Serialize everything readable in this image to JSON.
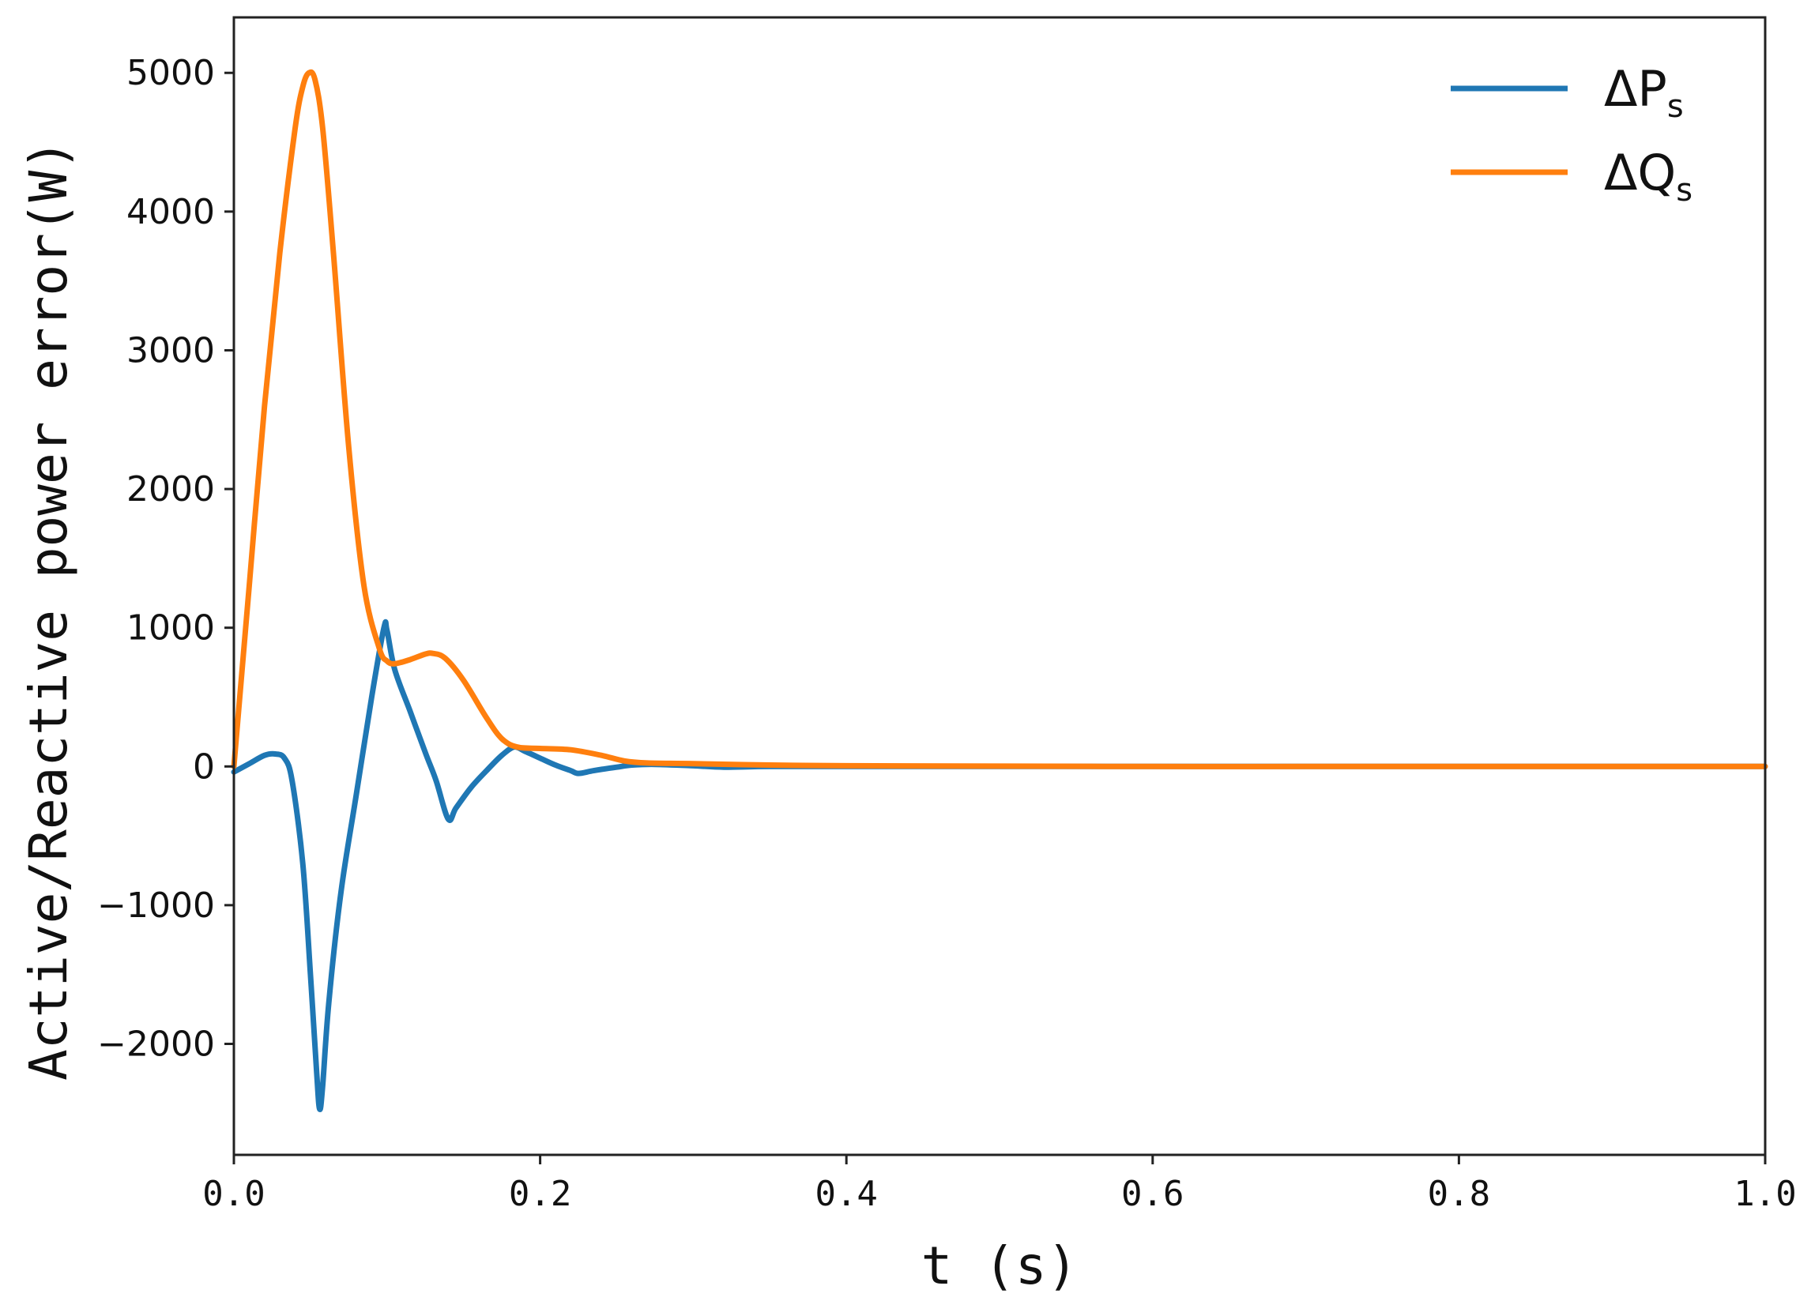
{
  "chart_data": {
    "type": "line",
    "xlabel": "t (s)",
    "ylabel": "Active/Reactive power error(W)",
    "xlim": [
      0.0,
      1.0
    ],
    "ylim": [
      -2800,
      5400
    ],
    "xticks": [
      "0.0",
      "0.2",
      "0.4",
      "0.6",
      "0.8",
      "1.0"
    ],
    "yticks": [
      "5000",
      "4000",
      "3000",
      "2000",
      "1000",
      "0",
      "−1000",
      "−2000"
    ],
    "xtick_values": [
      0.0,
      0.2,
      0.4,
      0.6,
      0.8,
      1.0
    ],
    "ytick_values": [
      5000,
      4000,
      3000,
      2000,
      1000,
      0,
      -1000,
      -2000
    ],
    "grid": false,
    "legend_position": "top-right",
    "series": [
      {
        "name": "ΔP",
        "subscript": "s",
        "color": "#1f77b4",
        "points": [
          [
            0.0,
            -40
          ],
          [
            0.01,
            20
          ],
          [
            0.02,
            80
          ],
          [
            0.027,
            90
          ],
          [
            0.033,
            60
          ],
          [
            0.038,
            -100
          ],
          [
            0.045,
            -700
          ],
          [
            0.05,
            -1500
          ],
          [
            0.054,
            -2200
          ],
          [
            0.056,
            -2470
          ],
          [
            0.058,
            -2300
          ],
          [
            0.062,
            -1700
          ],
          [
            0.07,
            -900
          ],
          [
            0.08,
            -200
          ],
          [
            0.09,
            500
          ],
          [
            0.098,
            1000
          ],
          [
            0.1,
            980
          ],
          [
            0.105,
            700
          ],
          [
            0.115,
            400
          ],
          [
            0.125,
            100
          ],
          [
            0.132,
            -100
          ],
          [
            0.14,
            -380
          ],
          [
            0.145,
            -300
          ],
          [
            0.155,
            -150
          ],
          [
            0.165,
            -30
          ],
          [
            0.175,
            80
          ],
          [
            0.183,
            140
          ],
          [
            0.19,
            110
          ],
          [
            0.2,
            60
          ],
          [
            0.21,
            10
          ],
          [
            0.22,
            -30
          ],
          [
            0.225,
            -50
          ],
          [
            0.235,
            -30
          ],
          [
            0.25,
            -5
          ],
          [
            0.26,
            10
          ],
          [
            0.275,
            15
          ],
          [
            0.3,
            5
          ],
          [
            0.32,
            -5
          ],
          [
            0.35,
            0
          ],
          [
            0.4,
            0
          ],
          [
            0.5,
            0
          ],
          [
            0.6,
            0
          ],
          [
            0.7,
            0
          ],
          [
            0.8,
            0
          ],
          [
            0.9,
            0
          ],
          [
            1.0,
            0
          ]
        ]
      },
      {
        "name": "ΔQ",
        "subscript": "s",
        "color": "#ff7f0e",
        "points": [
          [
            0.0,
            0
          ],
          [
            0.01,
            1300
          ],
          [
            0.02,
            2600
          ],
          [
            0.03,
            3700
          ],
          [
            0.04,
            4600
          ],
          [
            0.045,
            4900
          ],
          [
            0.049,
            5000
          ],
          [
            0.053,
            4950
          ],
          [
            0.058,
            4600
          ],
          [
            0.065,
            3700
          ],
          [
            0.075,
            2300
          ],
          [
            0.085,
            1300
          ],
          [
            0.095,
            850
          ],
          [
            0.1,
            760
          ],
          [
            0.105,
            740
          ],
          [
            0.115,
            770
          ],
          [
            0.125,
            810
          ],
          [
            0.13,
            815
          ],
          [
            0.138,
            780
          ],
          [
            0.15,
            620
          ],
          [
            0.165,
            350
          ],
          [
            0.175,
            200
          ],
          [
            0.185,
            140
          ],
          [
            0.2,
            130
          ],
          [
            0.22,
            120
          ],
          [
            0.24,
            80
          ],
          [
            0.255,
            40
          ],
          [
            0.27,
            25
          ],
          [
            0.3,
            20
          ],
          [
            0.35,
            10
          ],
          [
            0.4,
            5
          ],
          [
            0.5,
            2
          ],
          [
            0.6,
            0
          ],
          [
            0.7,
            0
          ],
          [
            0.8,
            0
          ],
          [
            0.9,
            0
          ],
          [
            1.0,
            0
          ]
        ]
      }
    ]
  }
}
